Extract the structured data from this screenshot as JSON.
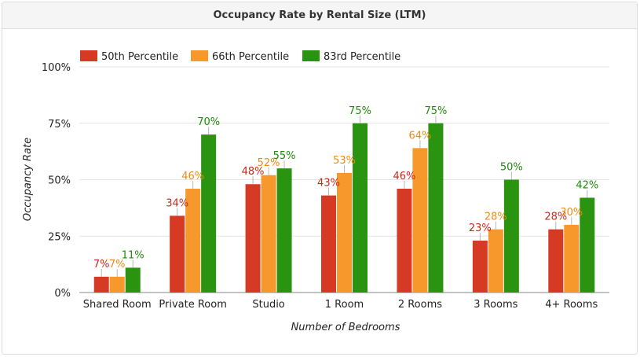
{
  "chart_data": {
    "type": "bar",
    "title": "Occupancy Rate by Rental Size (LTM)",
    "xlabel": "Number of Bedrooms",
    "ylabel": "Occupancy Rate",
    "categories": [
      "Shared Room",
      "Private Room",
      "Studio",
      "1 Room",
      "2 Rooms",
      "3 Rooms",
      "4+ Rooms"
    ],
    "series": [
      {
        "name": "50th Percentile",
        "color": "#d63a25",
        "label_color": "#c62a1a",
        "values": [
          7,
          34,
          48,
          43,
          46,
          23,
          28
        ]
      },
      {
        "name": "66th Percentile",
        "color": "#f7982d",
        "label_color": "#ee8a14",
        "values": [
          7,
          46,
          52,
          53,
          64,
          28,
          30
        ]
      },
      {
        "name": "83rd Percentile",
        "color": "#2a9410",
        "label_color": "#1e8c0a",
        "values": [
          11,
          70,
          55,
          75,
          75,
          50,
          42
        ]
      }
    ],
    "ylim": [
      0,
      100
    ],
    "y_ticks": [
      0,
      25,
      50,
      75,
      100
    ],
    "y_tick_labels": [
      "0%",
      "25%",
      "50%",
      "75%",
      "100%"
    ],
    "value_suffix": "%",
    "grid": true,
    "legend_position": "top-left"
  }
}
